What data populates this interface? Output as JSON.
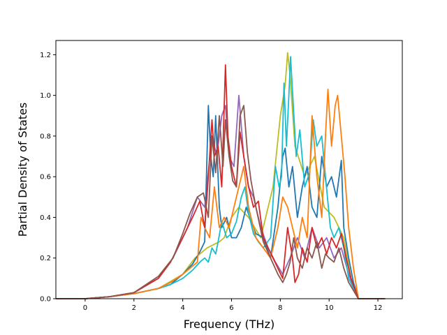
{
  "chart_data": {
    "type": "line",
    "title": "",
    "xlabel": "Frequency (THz)",
    "ylabel": "Partial Density of States",
    "xlim": [
      -1.2,
      13
    ],
    "ylim": [
      0,
      1.27
    ],
    "xticks": [
      0,
      2,
      4,
      6,
      8,
      10,
      12
    ],
    "yticks": [
      0.0,
      0.2,
      0.4,
      0.6,
      0.8,
      1.0,
      1.2
    ],
    "ytick_format": "0.1f",
    "grid": false,
    "legend": "none",
    "series": [
      {
        "color": "#bcbd22",
        "x": [
          -1.2,
          0,
          1,
          2,
          3,
          4,
          4.5,
          5,
          5.5,
          5.7,
          6,
          6.3,
          6.7,
          7.2,
          7.7,
          8,
          8.2,
          8.3,
          8.4,
          8.6,
          9,
          9.4,
          9.8,
          10.2,
          10.6,
          10.9,
          11.2,
          12.3
        ],
        "y": [
          0,
          0,
          0.01,
          0.025,
          0.05,
          0.12,
          0.2,
          0.25,
          0.28,
          0.3,
          0.4,
          0.45,
          0.4,
          0.3,
          0.55,
          0.9,
          1.05,
          1.21,
          1.1,
          0.75,
          0.6,
          0.7,
          0.45,
          0.4,
          0.3,
          0.1,
          0,
          0
        ]
      },
      {
        "color": "#9467bd",
        "x": [
          -1.2,
          0,
          1,
          2,
          3,
          3.6,
          4.2,
          4.6,
          4.9,
          5.2,
          5.4,
          5.6,
          5.75,
          5.9,
          6.1,
          6.3,
          6.5,
          6.7,
          6.9,
          7.2,
          7.5,
          7.8,
          8.1,
          8.4,
          8.7,
          9,
          9.3,
          9.6,
          9.9,
          10.2,
          10.5,
          10.8,
          11.2,
          12.3
        ],
        "y": [
          0,
          0,
          0.01,
          0.03,
          0.1,
          0.2,
          0.35,
          0.5,
          0.45,
          0.8,
          0.7,
          0.9,
          0.95,
          0.7,
          0.65,
          1.0,
          0.7,
          0.55,
          0.5,
          0.35,
          0.25,
          0.18,
          0.12,
          0.2,
          0.3,
          0.2,
          0.35,
          0.25,
          0.3,
          0.2,
          0.25,
          0.12,
          0,
          0
        ]
      },
      {
        "color": "#1f77b4",
        "x": [
          -1.2,
          0,
          1,
          2,
          3,
          3.5,
          4,
          4.4,
          4.7,
          4.9,
          5.05,
          5.15,
          5.25,
          5.35,
          5.5,
          5.6,
          5.8,
          6,
          6.2,
          6.4,
          6.6,
          6.8,
          7,
          7.3,
          7.6,
          7.9,
          8.1,
          8.2,
          8.35,
          8.5,
          8.7,
          8.9,
          9.1,
          9.3,
          9.5,
          9.7,
          9.9,
          10.1,
          10.3,
          10.5,
          10.6,
          10.8,
          11,
          11.2,
          12.3
        ],
        "y": [
          0,
          0,
          0.01,
          0.025,
          0.05,
          0.07,
          0.12,
          0.17,
          0.23,
          0.28,
          0.95,
          0.7,
          0.6,
          0.9,
          0.45,
          0.35,
          0.4,
          0.3,
          0.3,
          0.35,
          0.45,
          0.38,
          0.32,
          0.3,
          0.2,
          0.45,
          0.7,
          0.74,
          0.55,
          0.65,
          0.4,
          0.55,
          0.65,
          0.45,
          0.4,
          0.7,
          0.55,
          0.6,
          0.5,
          0.68,
          0.35,
          0.2,
          0.08,
          0,
          0
        ]
      },
      {
        "color": "#17becf",
        "x": [
          -1.2,
          0,
          1,
          2,
          3,
          3.5,
          4,
          4.4,
          4.7,
          4.9,
          5.05,
          5.2,
          5.35,
          5.45,
          5.6,
          5.8,
          6,
          6.2,
          6.4,
          6.55,
          6.7,
          6.9,
          7.1,
          7.3,
          7.6,
          7.8,
          7.95,
          8.05,
          8.15,
          8.25,
          8.35,
          8.42,
          8.5,
          8.65,
          8.8,
          9,
          9.2,
          9.35,
          9.5,
          9.7,
          9.85,
          10.05,
          10.2,
          10.4,
          10.6,
          10.8,
          11.2,
          12.3
        ],
        "y": [
          0,
          0,
          0.01,
          0.025,
          0.05,
          0.07,
          0.1,
          0.14,
          0.18,
          0.2,
          0.18,
          0.25,
          0.22,
          0.28,
          0.38,
          0.3,
          0.32,
          0.38,
          0.5,
          0.55,
          0.42,
          0.32,
          0.28,
          0.25,
          0.3,
          0.65,
          0.55,
          0.6,
          1.06,
          0.75,
          1.0,
          1.19,
          1.02,
          0.7,
          0.83,
          0.55,
          0.62,
          0.88,
          0.75,
          0.8,
          0.6,
          0.35,
          0.3,
          0.35,
          0.25,
          0.1,
          0,
          0
        ]
      },
      {
        "color": "#ff7f0e",
        "x": [
          -1.2,
          0,
          1,
          2,
          3,
          3.5,
          4,
          4.3,
          4.6,
          4.75,
          4.9,
          5.1,
          5.3,
          5.5,
          5.7,
          5.9,
          6.1,
          6.3,
          6.5,
          6.7,
          7,
          7.3,
          7.6,
          7.9,
          8.1,
          8.3,
          8.5,
          8.7,
          8.9,
          9.1,
          9.3,
          9.5,
          9.7,
          9.85,
          9.95,
          10.1,
          10.25,
          10.35,
          10.5,
          10.65,
          10.8,
          11,
          11.2,
          12.3
        ],
        "y": [
          0,
          0,
          0.01,
          0.025,
          0.05,
          0.08,
          0.12,
          0.15,
          0.18,
          0.4,
          0.35,
          0.3,
          0.55,
          0.35,
          0.4,
          0.35,
          0.45,
          0.55,
          0.65,
          0.45,
          0.3,
          0.25,
          0.2,
          0.35,
          0.5,
          0.45,
          0.35,
          0.25,
          0.4,
          0.3,
          0.9,
          0.6,
          0.4,
          0.8,
          1.03,
          0.75,
          0.95,
          1.0,
          0.8,
          0.6,
          0.35,
          0.15,
          0,
          0
        ]
      },
      {
        "color": "#d62728",
        "x": [
          -1.2,
          0,
          1,
          2,
          3,
          3.5,
          4,
          4.4,
          4.7,
          4.9,
          5.05,
          5.2,
          5.3,
          5.45,
          5.6,
          5.75,
          5.85,
          6,
          6.2,
          6.35,
          6.5,
          6.7,
          6.9,
          7.1,
          7.3,
          7.5,
          7.7,
          7.9,
          8.1,
          8.3,
          8.5,
          8.6,
          8.75,
          8.9,
          9.1,
          9.3,
          9.5,
          9.7,
          9.9,
          10.1,
          10.3,
          10.5,
          10.7,
          10.9,
          11.2,
          12.3
        ],
        "y": [
          0,
          0,
          0.01,
          0.03,
          0.1,
          0.18,
          0.3,
          0.4,
          0.48,
          0.35,
          0.6,
          0.88,
          0.7,
          0.75,
          0.55,
          1.15,
          0.8,
          0.65,
          0.55,
          0.82,
          0.7,
          0.55,
          0.45,
          0.48,
          0.3,
          0.25,
          0.2,
          0.15,
          0.1,
          0.35,
          0.2,
          0.08,
          0.12,
          0.25,
          0.18,
          0.35,
          0.25,
          0.3,
          0.22,
          0.3,
          0.25,
          0.32,
          0.2,
          0.1,
          0,
          0
        ]
      },
      {
        "color": "#8c564b",
        "x": [
          -1.2,
          0,
          1,
          2,
          3,
          3.6,
          4,
          4.3,
          4.6,
          4.85,
          5.05,
          5.2,
          5.35,
          5.5,
          5.65,
          5.75,
          5.9,
          6.05,
          6.2,
          6.35,
          6.5,
          6.65,
          6.8,
          7,
          7.3,
          7.6,
          7.9,
          8.1,
          8.25,
          8.4,
          8.55,
          8.7,
          8.9,
          9.1,
          9.3,
          9.5,
          9.7,
          9.85,
          10,
          10.2,
          10.4,
          10.6,
          10.8,
          11,
          11.2,
          12.3
        ],
        "y": [
          0,
          0,
          0.01,
          0.03,
          0.11,
          0.2,
          0.32,
          0.42,
          0.5,
          0.52,
          0.4,
          0.8,
          0.62,
          0.9,
          0.65,
          0.88,
          0.7,
          0.58,
          0.55,
          0.9,
          0.95,
          0.72,
          0.58,
          0.45,
          0.28,
          0.2,
          0.12,
          0.08,
          0.12,
          0.18,
          0.3,
          0.2,
          0.15,
          0.25,
          0.2,
          0.28,
          0.15,
          0.22,
          0.2,
          0.18,
          0.25,
          0.15,
          0.08,
          0.04,
          0,
          0
        ]
      }
    ]
  }
}
